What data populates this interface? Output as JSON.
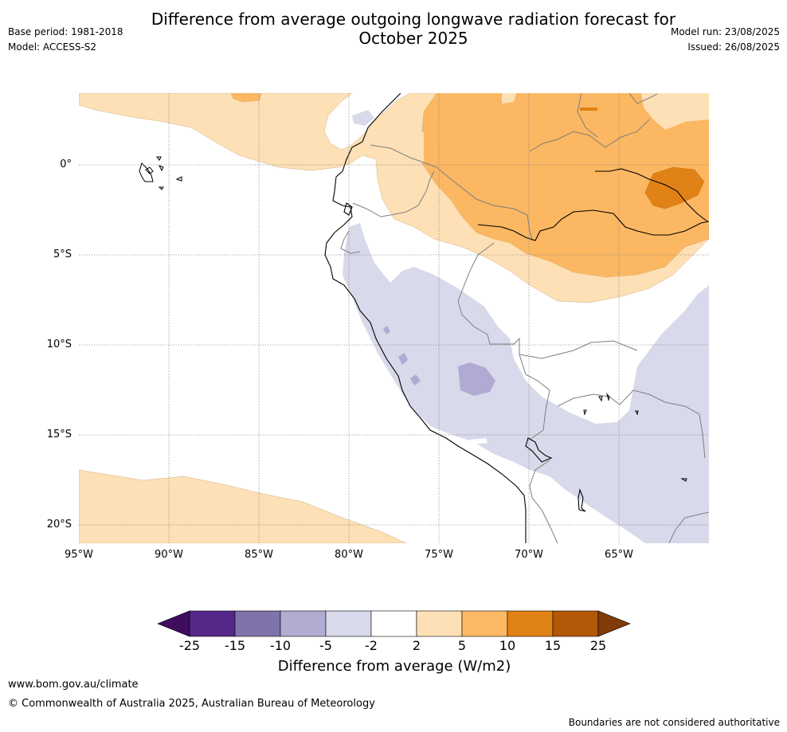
{
  "header": {
    "title_line1": "Difference from average outgoing longwave radiation forecast for",
    "title_line2": "October 2025",
    "base_period": "Base period: 1981-2018",
    "model": "Model: ACCESS-S2",
    "model_run": "Model run: 23/08/2025",
    "issued": "Issued: 26/08/2025"
  },
  "map": {
    "lat_labels": [
      "0°",
      "5°S",
      "10°S",
      "15°S",
      "20°S"
    ],
    "lon_labels": [
      "95°W",
      "90°W",
      "85°W",
      "80°W",
      "75°W",
      "70°W",
      "65°W"
    ],
    "colors": {
      "ocean_bg": "#ffffff",
      "pos_2_5": "#fde0b5",
      "pos_5_10": "#fbb762",
      "pos_10_15": "#e08215",
      "neg_2_5": "#d8d9ea",
      "neg_5_10": "#b1aad2",
      "coastline": "#000000",
      "border": "#7f7f7f",
      "grid": "#808080"
    }
  },
  "colorbar": {
    "ticks": [
      "-25",
      "-15",
      "-10",
      "-5",
      "-2",
      "2",
      "5",
      "10",
      "15",
      "25"
    ],
    "colors": [
      "#3f0c5e",
      "#542788",
      "#8073ac",
      "#b2abd2",
      "#d8daeb",
      "#ffffff",
      "#fee0b6",
      "#fdb863",
      "#e08214",
      "#b35806",
      "#7f3b08"
    ],
    "label": "Difference from average (W/m2)"
  },
  "footer": {
    "website": "www.bom.gov.au/climate",
    "copyright": "© Commonwealth of Australia 2025, Australian Bureau of Meteorology",
    "disclaimer": "Boundaries are not considered authoritative"
  }
}
